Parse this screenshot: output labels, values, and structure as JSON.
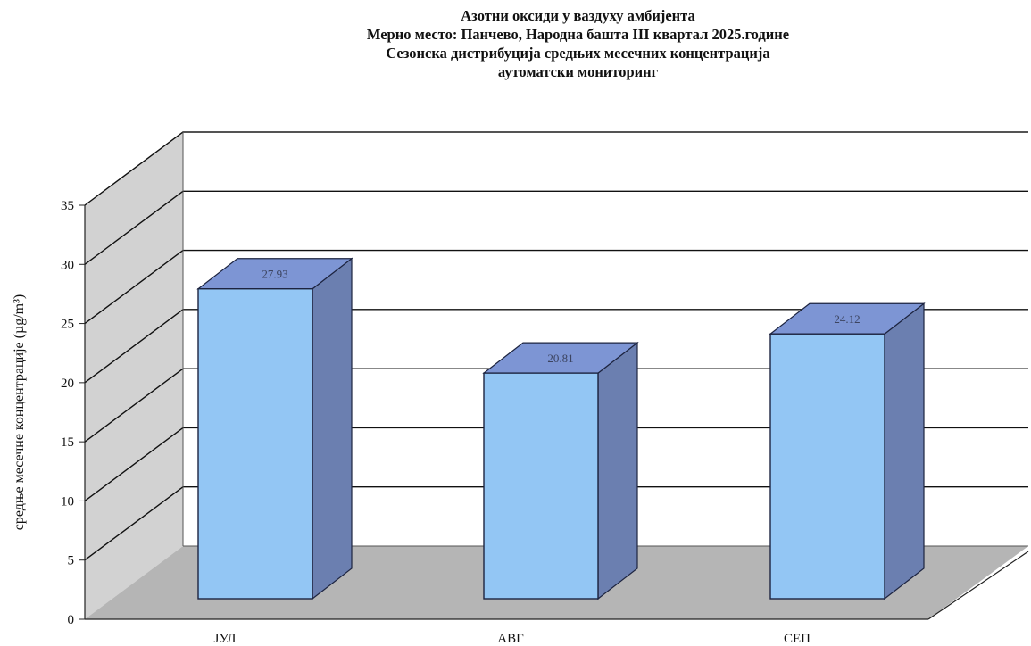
{
  "titles": [
    "Азотни оксиди у ваздуху амбијента",
    "Мерно место: Панчево, Народна башта III квартал 2025.године",
    "Сезонска дистрибуција средњих месечних концентрација",
    "аутоматски мониторинг"
  ],
  "chart_data": {
    "type": "bar",
    "categories": [
      "ЈУЛ",
      "АВГ",
      "СЕП"
    ],
    "values": [
      27.93,
      20.81,
      24.12
    ],
    "data_labels": [
      "27.93",
      "20.81",
      "24.12"
    ],
    "ylabel": "средње месечне концентрације  (µg/m³)",
    "ylabel_unit": "(µg/m³)",
    "ylim": [
      0,
      35
    ],
    "yticks": [
      "0",
      "5",
      "10",
      "15",
      "20",
      "25",
      "30",
      "35"
    ],
    "grid": true,
    "style": "3d-column",
    "colors": {
      "bar_front": "#93c6f4",
      "bar_side": "#6b7fb0",
      "bar_top": "#7d95d4",
      "wall": "#d2d2d2",
      "floor": "#b5b5b5",
      "gridline": "#111111"
    }
  }
}
